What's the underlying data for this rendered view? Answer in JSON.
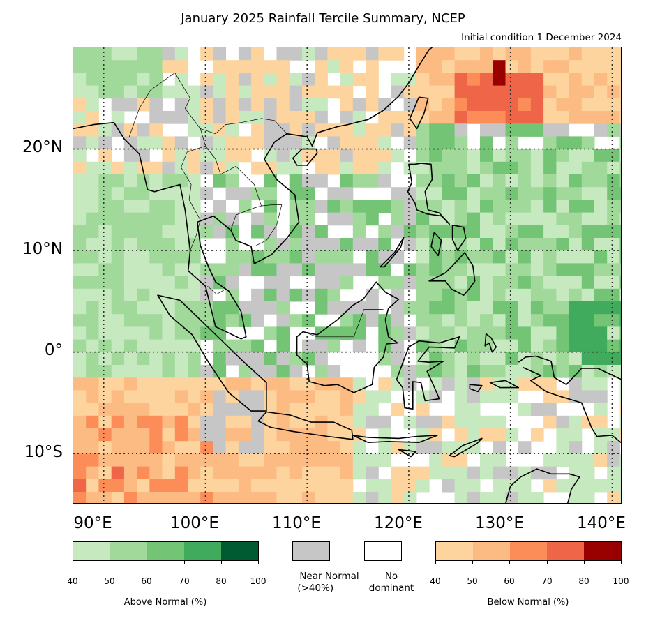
{
  "title": "January 2025 Rainfall Tercile Summary, NCEP",
  "subtitle": "Initial condition 1 December 2024",
  "map": {
    "lon_range": [
      87,
      141
    ],
    "lat_range": [
      -15,
      30
    ],
    "lat_labels": [
      "20°N",
      "10°N",
      "0°",
      "10°S"
    ],
    "lon_labels": [
      "90°E",
      "100°E",
      "110°E",
      "120°E",
      "130°E",
      "140°E"
    ],
    "colors": {
      "above": [
        "#c7e9c0",
        "#a1d99b",
        "#74c476",
        "#41ab5d",
        "#005a32"
      ],
      "near": "#c6c6c6",
      "none": "#ffffff",
      "below": [
        "#fdd49e",
        "#fdbb84",
        "#fc8d59",
        "#ef6548",
        "#990000"
      ]
    }
  },
  "legend": {
    "above": {
      "label": "Above Normal (%)",
      "ticks": [
        "40",
        "50",
        "60",
        "70",
        "80",
        "100"
      ]
    },
    "near": {
      "label_line1": "Near Normal",
      "label_line2": "(>40%)"
    },
    "nodom": {
      "label_line1": "No",
      "label_line2": "dominant"
    },
    "below": {
      "label": "Below Normal (%)",
      "ticks": [
        "40",
        "50",
        "60",
        "70",
        "80",
        "100"
      ]
    }
  }
}
